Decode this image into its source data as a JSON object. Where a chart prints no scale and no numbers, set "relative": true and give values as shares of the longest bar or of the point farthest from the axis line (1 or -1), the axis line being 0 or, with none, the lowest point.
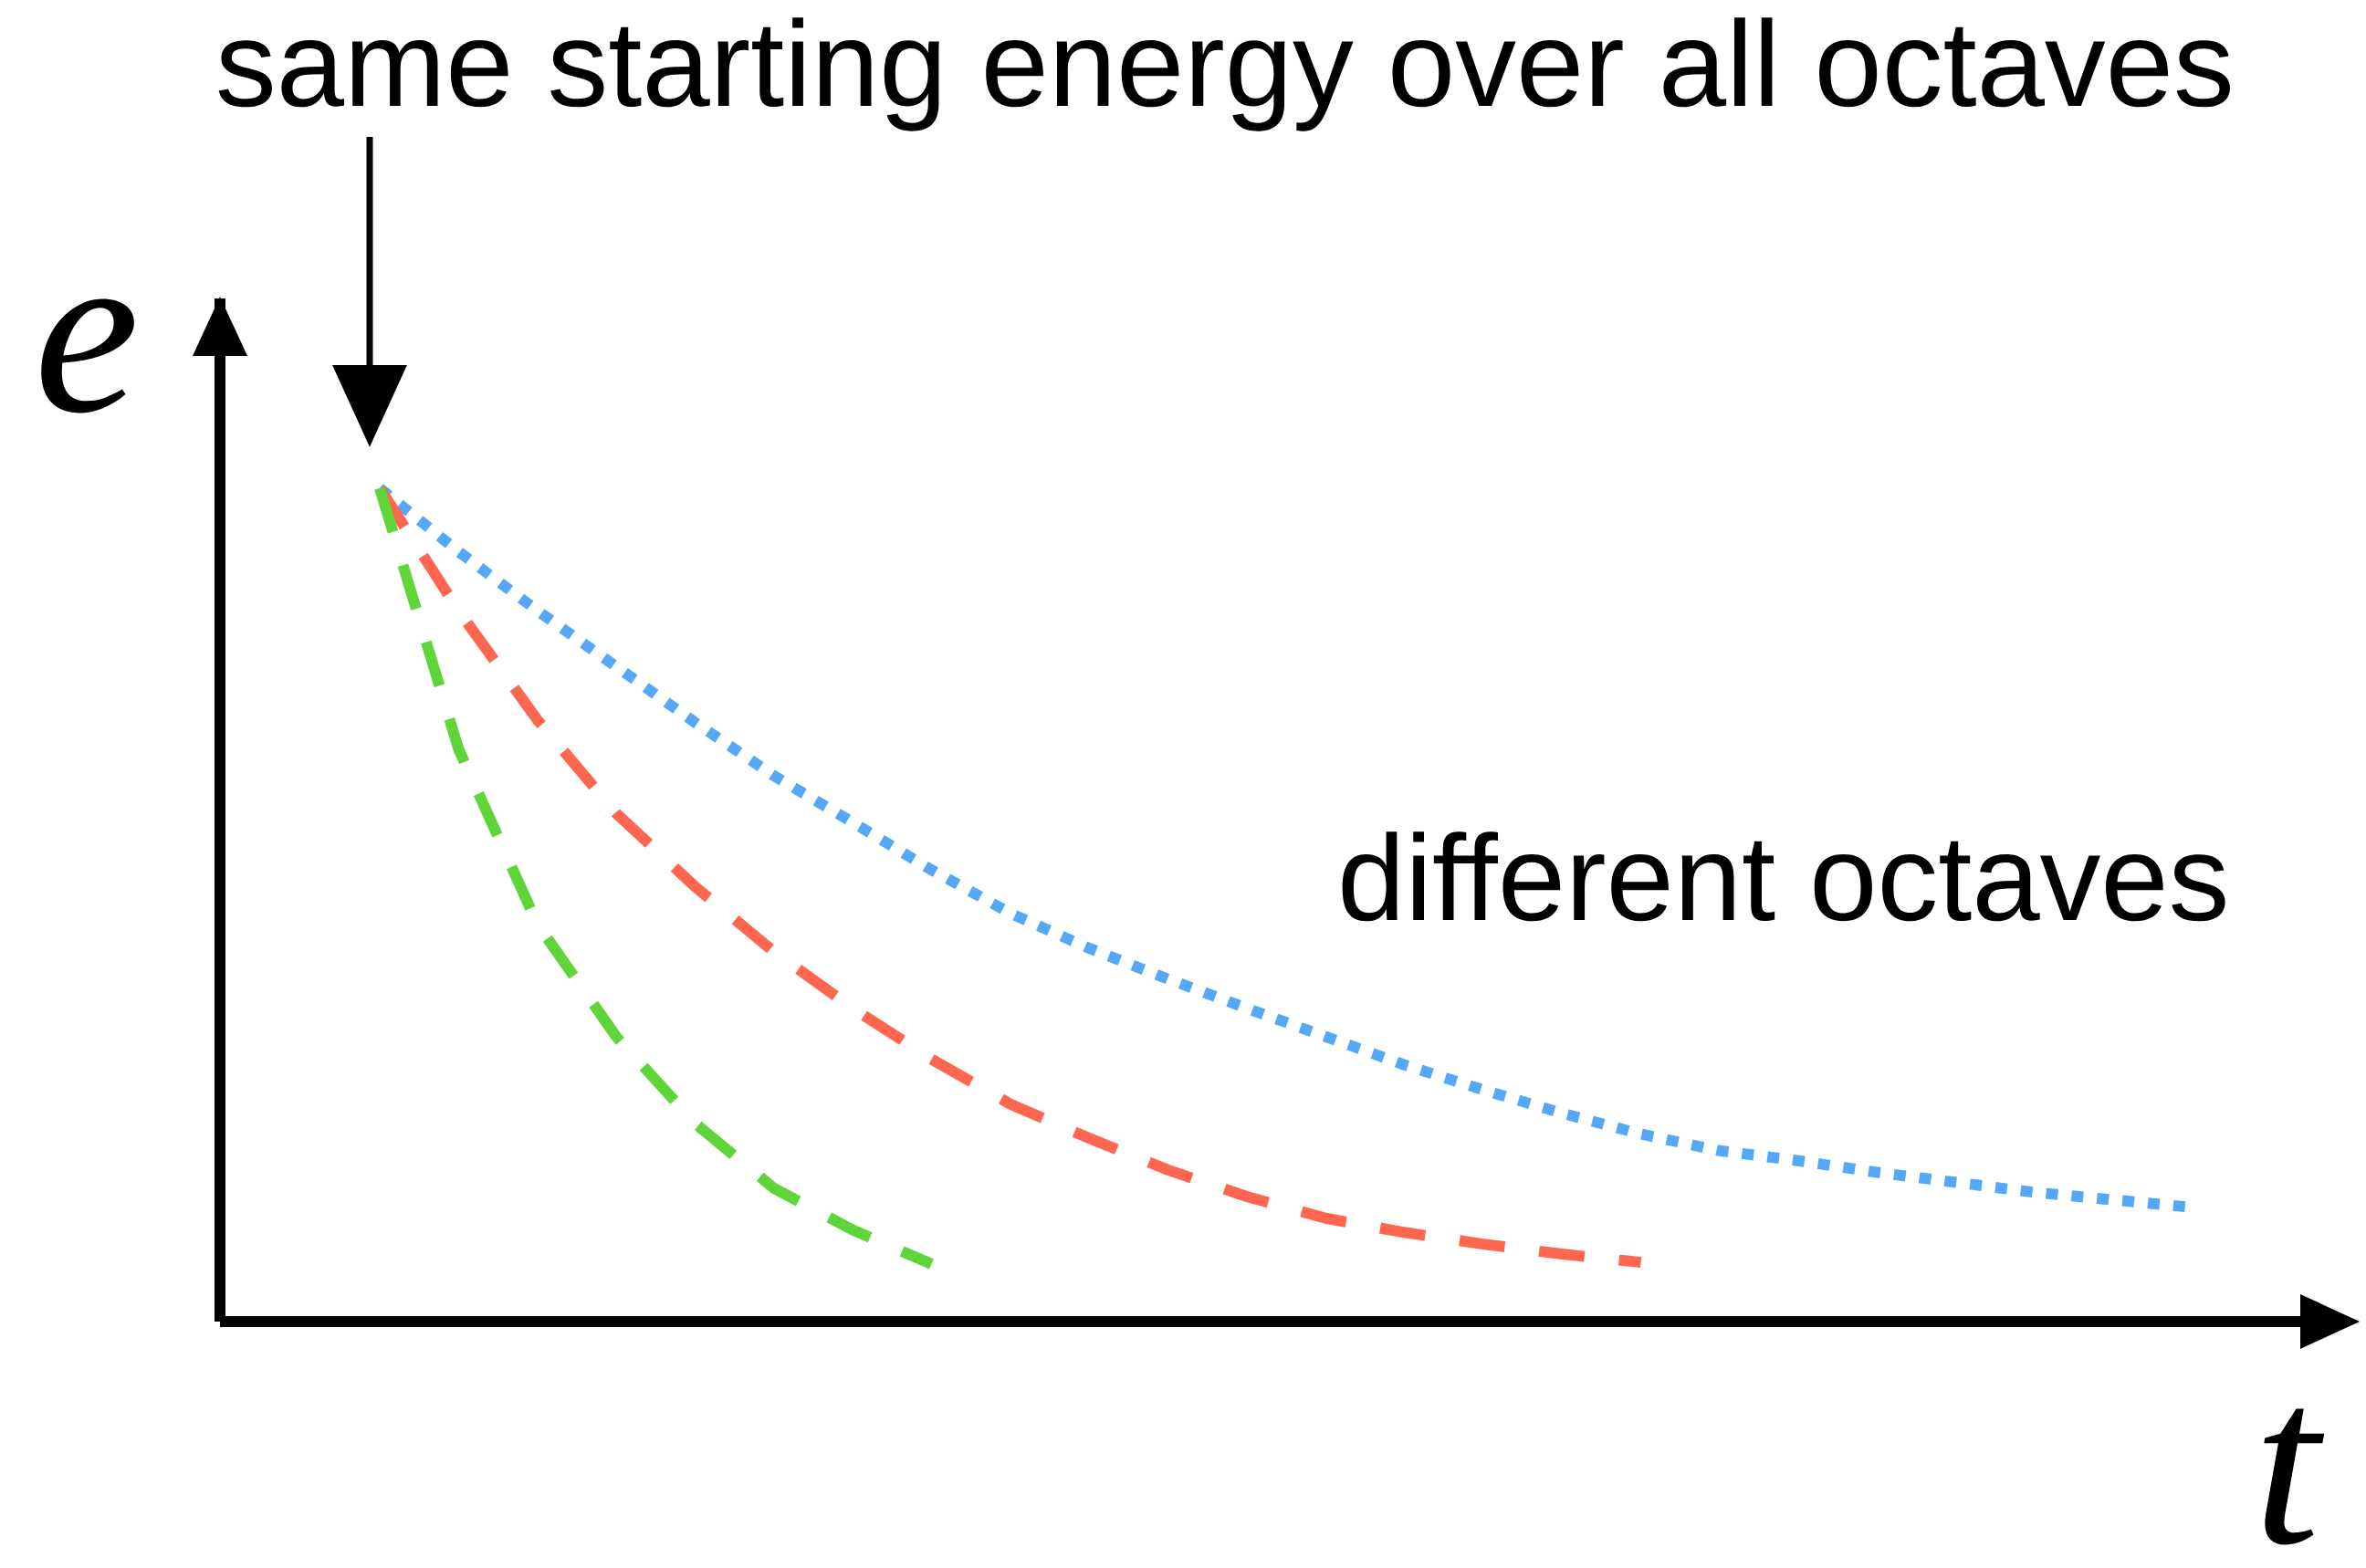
{
  "chart_data": {
    "type": "line",
    "xlabel": "t",
    "ylabel": "e",
    "relative": true,
    "categories": [
      null,
      null,
      null,
      null,
      null,
      null,
      null,
      null,
      null,
      null,
      null,
      null,
      null,
      null,
      null,
      null,
      null,
      null,
      null,
      null,
      null,
      null,
      null,
      null
    ],
    "series": [
      {
        "color": "#55a8f7",
        "line_style": "dotted",
        "values": [
          1.0,
          0.924,
          0.853,
          0.786,
          0.719,
          0.655,
          0.599,
          0.542,
          0.49,
          0.448,
          0.411,
          0.376,
          0.342,
          0.308,
          0.278,
          0.25,
          0.225,
          0.205,
          0.193,
          0.179,
          0.167,
          0.155,
          0.146,
          0.137
        ]
      },
      {
        "color": "#fe6650",
        "line_style": "dashed",
        "values": [
          1.0,
          0.853,
          0.722,
          0.61,
          0.522,
          0.444,
          0.376,
          0.315,
          0.261,
          0.22,
          0.182,
          0.15,
          0.124,
          0.107,
          0.093,
          0.081,
          0.071,
          null,
          null,
          null,
          null,
          null,
          null,
          null
        ]
      },
      {
        "color": "#60d53a",
        "line_style": "dashed",
        "values": [
          1.0,
          0.687,
          0.477,
          0.342,
          0.238,
          0.16,
          0.11,
          0.069,
          null,
          null,
          null,
          null,
          null,
          null,
          null,
          null,
          null,
          null,
          null,
          null,
          null,
          null,
          null,
          null
        ]
      }
    ],
    "annotations": [
      "same starting energy over all octaves",
      "different octaves"
    ]
  }
}
